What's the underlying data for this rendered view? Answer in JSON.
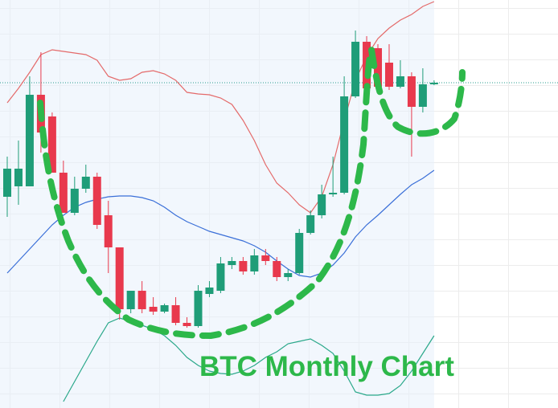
{
  "chart_data": {
    "type": "candlestick",
    "title": "BTC Monthly Chart",
    "categories": [
      null,
      null,
      null,
      null,
      null,
      null,
      null,
      null,
      null,
      null,
      null,
      null,
      null,
      null,
      null,
      null,
      null,
      null,
      null,
      null,
      null,
      null,
      null,
      null,
      null,
      null,
      null,
      null,
      null,
      null,
      null,
      null,
      null,
      null,
      null,
      null,
      null,
      null,
      null
    ],
    "open": [
      263,
      276,
      276,
      390,
      363,
      293,
      243,
      273,
      288,
      240,
      200,
      123,
      146,
      126,
      120,
      128,
      106,
      102,
      142,
      146,
      178,
      183,
      170,
      190,
      183,
      163,
      168,
      218,
      240,
      266,
      268,
      388,
      456,
      448,
      430,
      400,
      413,
      375,
      403
    ],
    "high": [
      313,
      333,
      413,
      443,
      368,
      308,
      288,
      303,
      293,
      258,
      200,
      146,
      158,
      138,
      130,
      138,
      113,
      153,
      158,
      188,
      188,
      188,
      198,
      198,
      188,
      173,
      223,
      246,
      278,
      313,
      413,
      470,
      463,
      453,
      453,
      433,
      418,
      423,
      408
    ],
    "low": [
      238,
      253,
      276,
      318,
      293,
      243,
      240,
      268,
      223,
      168,
      110,
      118,
      118,
      116,
      118,
      103,
      100,
      100,
      138,
      143,
      173,
      166,
      166,
      178,
      158,
      158,
      166,
      216,
      236,
      263,
      266,
      386,
      383,
      396,
      396,
      398,
      313,
      368,
      402
    ],
    "close": [
      298,
      298,
      390,
      343,
      293,
      243,
      273,
      288,
      228,
      200,
      123,
      146,
      123,
      120,
      128,
      106,
      102,
      146,
      150,
      180,
      183,
      170,
      190,
      183,
      163,
      168,
      218,
      240,
      266,
      268,
      388,
      456,
      398,
      400,
      400,
      413,
      375,
      403,
      405
    ],
    "up_color": "#1f9d78",
    "down_color": "#e8394d",
    "series": [
      {
        "color": "#e46a6a",
        "values": [
          380,
          398,
          418,
          440,
          446,
          444,
          442,
          440,
          433,
          413,
          408,
          410,
          418,
          420,
          416,
          408,
          393,
          391,
          390,
          386,
          378,
          358,
          333,
          303,
          280,
          268,
          253,
          243,
          263,
          303,
          358,
          408,
          438,
          460,
          473,
          483,
          490,
          500,
          506
        ]
      },
      {
        "color": "#3a6fd8",
        "values": [
          168,
          183,
          198,
          213,
          228,
          240,
          250,
          256,
          260,
          263,
          264,
          264,
          262,
          258,
          250,
          240,
          232,
          226,
          220,
          216,
          212,
          208,
          202,
          194,
          183,
          173,
          165,
          163,
          168,
          178,
          193,
          213,
          228,
          240,
          253,
          266,
          278,
          286,
          296
        ]
      },
      {
        "color": "#2aa88a",
        "values": [
          null,
          null,
          null,
          null,
          null,
          8,
          33,
          58,
          83,
          106,
          112,
          108,
          103,
          98,
          90,
          78,
          63,
          53,
          46,
          43,
          42,
          46,
          53,
          63,
          70,
          80,
          83,
          86,
          78,
          68,
          46,
          20,
          16,
          16,
          18,
          28,
          46,
          68,
          90
        ]
      }
    ],
    "price_line": 405,
    "ylim": [
      0,
      508
    ]
  }
}
